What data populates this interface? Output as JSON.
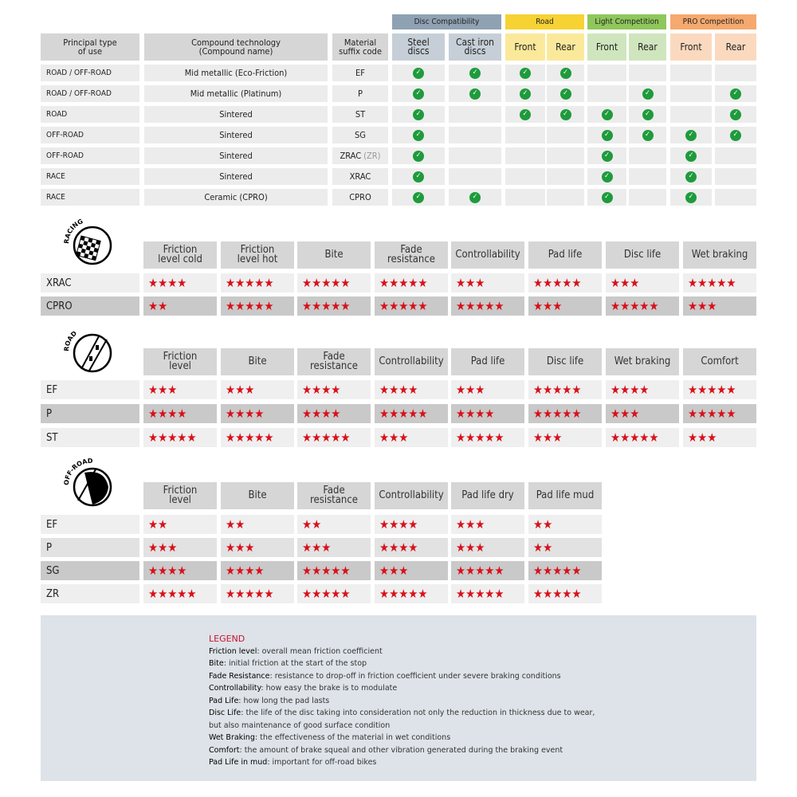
{
  "compat": {
    "groups": [
      {
        "label": "Disc Compatibility",
        "color": "#8fa2b3",
        "sub_color": "#c6cfd7",
        "span": 2
      },
      {
        "label": "Road",
        "color": "#f6d233",
        "sub_color": "#fbe99b",
        "span": 2
      },
      {
        "label": "Light Competition",
        "color": "#8fc75b",
        "sub_color": "#cfe5bd",
        "span": 2
      },
      {
        "label": "PRO Competition",
        "color": "#f5a96e",
        "sub_color": "#fbd9bf",
        "span": 2
      }
    ],
    "headers": [
      "Principal type\nof use",
      "Compound technology\n(Compound name)",
      "Material\nsuffix code",
      "Steel\ndiscs",
      "Cast iron\ndiscs",
      "Front",
      "Rear",
      "Front",
      "Rear",
      "Front",
      "Rear"
    ],
    "rows": [
      {
        "use": "ROAD / OFF-ROAD",
        "compound": "Mid metallic (Eco-Friction)",
        "code": "EF",
        "code_suffix": "",
        "checks": [
          1,
          1,
          1,
          1,
          0,
          0,
          0,
          0
        ]
      },
      {
        "use": "ROAD / OFF-ROAD",
        "compound": "Mid metallic (Platinum)",
        "code": "P",
        "code_suffix": "",
        "checks": [
          1,
          1,
          1,
          1,
          0,
          1,
          0,
          1
        ]
      },
      {
        "use": "ROAD",
        "compound": "Sintered",
        "code": "ST",
        "code_suffix": "",
        "checks": [
          1,
          0,
          1,
          1,
          1,
          1,
          0,
          1
        ]
      },
      {
        "use": "OFF-ROAD",
        "compound": "Sintered",
        "code": "SG",
        "code_suffix": "",
        "checks": [
          1,
          0,
          0,
          0,
          1,
          1,
          1,
          1
        ]
      },
      {
        "use": "OFF-ROAD",
        "compound": "Sintered",
        "code": "ZRAC",
        "code_suffix": "(ZR)",
        "checks": [
          1,
          0,
          0,
          0,
          1,
          0,
          1,
          0
        ]
      },
      {
        "use": "RACE",
        "compound": "Sintered",
        "code": "XRAC",
        "code_suffix": "",
        "checks": [
          1,
          0,
          0,
          0,
          1,
          0,
          1,
          0
        ]
      },
      {
        "use": "RACE",
        "compound": "Ceramic (CPRO)",
        "code": "CPRO",
        "code_suffix": "",
        "checks": [
          1,
          1,
          0,
          0,
          1,
          0,
          1,
          0
        ]
      }
    ],
    "check_color": "#1e9b3c"
  },
  "ratings": [
    {
      "icon": "racing-flag-icon",
      "icon_text": "RACING",
      "columns": [
        "Friction\nlevel cold",
        "Friction\nlevel hot",
        "Bite",
        "Fade\nresistance",
        "Controllability",
        "Pad life",
        "Disc life",
        "Wet braking"
      ],
      "rows": [
        {
          "code": "XRAC",
          "shade": "light",
          "stars": [
            4,
            5,
            5,
            5,
            3,
            5,
            3,
            5
          ]
        },
        {
          "code": "CPRO",
          "shade": "dark",
          "stars": [
            2,
            5,
            5,
            5,
            5,
            3,
            5,
            3
          ]
        }
      ]
    },
    {
      "icon": "road-icon",
      "icon_text": "ROAD",
      "columns": [
        "Friction\nlevel",
        "Bite",
        "Fade\nresistance",
        "Controllability",
        "Pad life",
        "Disc life",
        "Wet braking",
        "Comfort"
      ],
      "rows": [
        {
          "code": "EF",
          "shade": "light",
          "stars": [
            3,
            3,
            4,
            4,
            3,
            5,
            4,
            5
          ]
        },
        {
          "code": "P",
          "shade": "dark",
          "stars": [
            4,
            4,
            4,
            5,
            4,
            5,
            3,
            5
          ]
        },
        {
          "code": "ST",
          "shade": "light",
          "stars": [
            5,
            5,
            5,
            3,
            5,
            3,
            5,
            3
          ]
        }
      ]
    },
    {
      "icon": "off-road-icon",
      "icon_text": "OFF-ROAD",
      "columns": [
        "Friction\nlevel",
        "Bite",
        "Fade\nresistance",
        "Controllability",
        "Pad life dry",
        "Pad life mud"
      ],
      "rows": [
        {
          "code": "EF",
          "shade": "light",
          "stars": [
            2,
            2,
            2,
            4,
            3,
            2
          ]
        },
        {
          "code": "P",
          "shade": "mid",
          "stars": [
            3,
            3,
            3,
            4,
            3,
            2
          ]
        },
        {
          "code": "SG",
          "shade": "dark",
          "stars": [
            4,
            4,
            5,
            3,
            5,
            5
          ]
        },
        {
          "code": "ZR",
          "shade": "light",
          "stars": [
            5,
            5,
            5,
            5,
            5,
            5
          ]
        }
      ]
    }
  ],
  "star_color": "#d9101a",
  "legend": {
    "title": "LEGEND",
    "items": [
      {
        "term": "Friction level",
        "desc": ": overall mean friction coefficient"
      },
      {
        "term": "Bite",
        "desc": ": initial friction at the start of the stop"
      },
      {
        "term": "Fade Resistance",
        "desc": ": resistance to drop-off in friction coefficient under severe braking conditions"
      },
      {
        "term": "Controllability",
        "desc": ": how easy the brake is to modulate"
      },
      {
        "term": "Pad Life",
        "desc": ": how long the pad lasts"
      },
      {
        "term": "Disc Life",
        "desc": ": the life of the disc taking into consideration not only the reduction in thickness due to wear,"
      },
      {
        "term": "",
        "desc": "but also maintenance of good surface condition"
      },
      {
        "term": "Wet Braking",
        "desc": ": the effectiveness of the material in wet conditions"
      },
      {
        "term": "Comfort",
        "desc": ": the amount of brake squeal and other vibration generated during the braking event"
      },
      {
        "term": "Pad Life in mud",
        "desc": ": important for off-road bikes"
      }
    ]
  }
}
